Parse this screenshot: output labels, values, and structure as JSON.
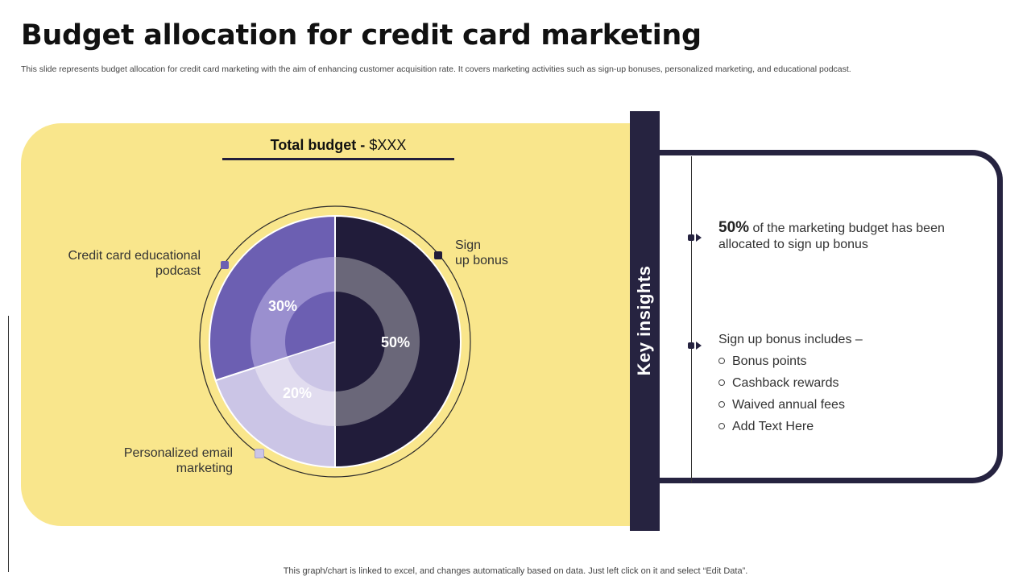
{
  "slide": {
    "title": "Budget allocation for credit card marketing",
    "subtitle": "This slide represents budget allocation for credit card marketing with the aim of enhancing customer acquisition rate. It covers marketing activities such as sign-up bonuses, personalized marketing, and educational podcast.",
    "footer": "This graph/chart is linked to excel,  and changes automatically based on data. Just left click on it and select “Edit Data”."
  },
  "chart_data": {
    "type": "pie",
    "title": "Total budget - $XXX",
    "title_label": "Total budget - ",
    "title_value": "$XXX",
    "categories": [
      "Sign up bonus",
      "Personalized email marketing",
      "Credit card educational podcast"
    ],
    "values": [
      50,
      20,
      30
    ],
    "value_labels": [
      "50%",
      "20%",
      "30%"
    ],
    "colors": [
      "#211c3a",
      "#cbc5e6",
      "#6c5fb2"
    ],
    "inner_colors": [
      "#6a6779",
      "#e1dcef",
      "#9a8fcf"
    ],
    "legend_placement": "outside-labels"
  },
  "labels": {
    "sign_up_line1": "Sign",
    "sign_up_line2": "up bonus",
    "podcast_line1": "Credit card educational",
    "podcast_line2": "podcast",
    "email_line1": "Personalized email",
    "email_line2": "marketing"
  },
  "insights": {
    "header": "Key insights",
    "point1_big": "50%",
    "point1_rest": " of the marketing budget has been",
    "point1_line2": "allocated to sign up bonus",
    "point2_heading": "Sign up bonus includes –",
    "bullets": [
      "Bonus points",
      "Cashback rewards",
      "Waived annual fees",
      "Add Text Here"
    ]
  }
}
